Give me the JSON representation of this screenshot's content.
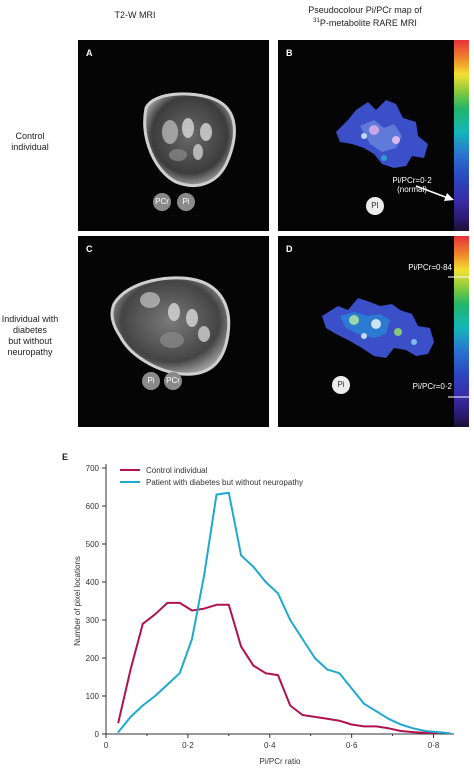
{
  "headers": {
    "left": "T2-W MRI",
    "right_line1": "Pseudocolour Pi/PCr map of",
    "right_line2_sup": "31",
    "right_line2": "P-metabolite RARE MRI"
  },
  "rows": {
    "row1_label": [
      "Control",
      "individual"
    ],
    "row2_label": [
      "Individual with",
      "diabetes",
      "but without",
      "neuropathy"
    ]
  },
  "panels": {
    "a": "A",
    "b": "B",
    "c": "C",
    "d": "D",
    "a_markers": [
      "PCr",
      "Pi"
    ],
    "b_marker": "PI",
    "b_annot": [
      "Pi/PCr=0·2",
      "(normal)"
    ],
    "c_markers": [
      "Pi",
      "PCr"
    ],
    "d_marker": "Pi",
    "d_annot_top": "Pi/PCr=0·84",
    "d_annot_bottom": "Pi/PCr=0·2"
  },
  "chart_letter": "E",
  "chart_data": {
    "type": "line",
    "xlabel": "Pi/PCr ratio",
    "ylabel": "Number of pixel locations",
    "xlim": [
      0,
      0.85
    ],
    "ylim": [
      0,
      700
    ],
    "xticks": [
      "0",
      "0·2",
      "0·4",
      "0·6",
      "0·8"
    ],
    "yticks": [
      "0",
      "100",
      "200",
      "300",
      "400",
      "500",
      "600",
      "700"
    ],
    "legend_position": "top-left",
    "series": [
      {
        "name": "Control individual",
        "color": "#b0124f",
        "x": [
          0.03,
          0.06,
          0.09,
          0.12,
          0.15,
          0.18,
          0.21,
          0.24,
          0.27,
          0.3,
          0.33,
          0.36,
          0.39,
          0.42,
          0.45,
          0.48,
          0.51,
          0.54,
          0.57,
          0.6,
          0.63,
          0.66,
          0.69,
          0.72,
          0.75,
          0.78,
          0.81
        ],
        "y": [
          30,
          170,
          290,
          315,
          345,
          345,
          325,
          330,
          340,
          340,
          230,
          180,
          160,
          155,
          75,
          50,
          45,
          40,
          35,
          25,
          20,
          20,
          15,
          8,
          5,
          3,
          2
        ]
      },
      {
        "name": "Patient with diabetes but without neuropathy",
        "color": "#1fa9d0",
        "x": [
          0.03,
          0.06,
          0.09,
          0.12,
          0.15,
          0.18,
          0.21,
          0.24,
          0.27,
          0.3,
          0.33,
          0.36,
          0.39,
          0.42,
          0.45,
          0.48,
          0.51,
          0.54,
          0.57,
          0.6,
          0.63,
          0.66,
          0.69,
          0.72,
          0.75,
          0.78,
          0.81,
          0.84
        ],
        "y": [
          5,
          45,
          75,
          100,
          130,
          160,
          250,
          420,
          630,
          635,
          470,
          440,
          400,
          370,
          300,
          250,
          200,
          170,
          160,
          120,
          80,
          60,
          40,
          25,
          15,
          8,
          5,
          2
        ]
      }
    ]
  }
}
